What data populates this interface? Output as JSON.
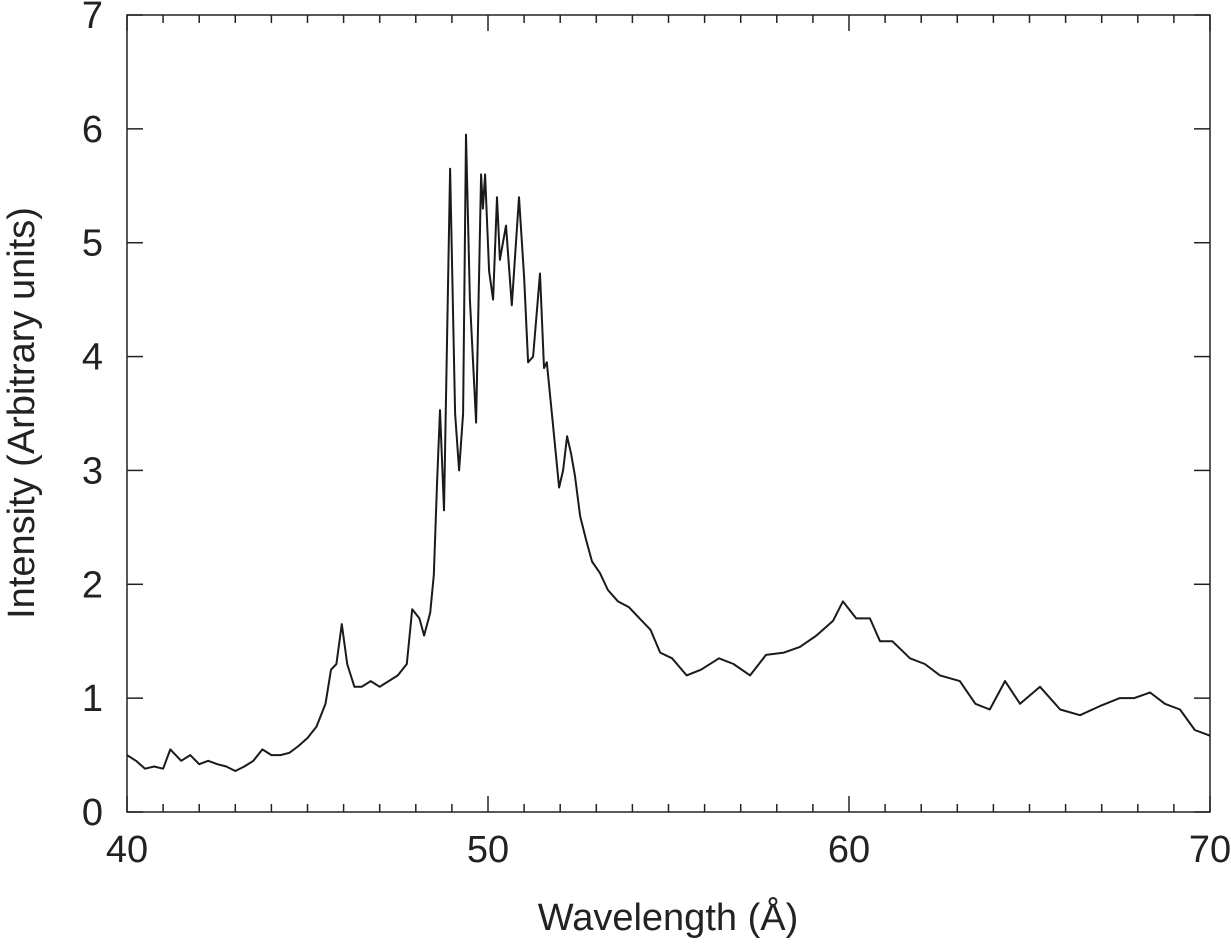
{
  "chart_data": {
    "type": "line",
    "x_label": "Wavelength (Å)",
    "y_label": "Intensity (Arbitrary units)",
    "xlim": [
      40,
      70
    ],
    "ylim": [
      0,
      7
    ],
    "xticks": [
      40,
      50,
      60,
      70
    ],
    "xticks_minor": [
      41,
      42,
      43,
      44,
      45,
      46,
      47,
      48,
      49,
      51,
      52,
      53,
      54,
      55,
      56,
      57,
      58,
      59,
      61,
      62,
      63,
      64,
      65,
      66,
      67,
      68,
      69
    ],
    "yticks": [
      0,
      1,
      2,
      3,
      4,
      5,
      6,
      7
    ],
    "x": [
      40,
      40.25,
      40.5,
      40.75,
      41,
      41.2,
      41.5,
      41.75,
      42,
      42.25,
      42.5,
      42.75,
      43,
      43.25,
      43.5,
      43.75,
      44,
      44.25,
      44.5,
      44.75,
      45,
      45.25,
      45.5,
      45.65,
      45.8,
      45.95,
      46.1,
      46.3,
      46.5,
      46.75,
      47,
      47.25,
      47.5,
      47.75,
      47.9,
      48.1,
      48.23,
      48.4,
      48.5,
      48.59,
      48.67,
      48.78,
      48.95,
      49.09,
      49.2,
      49.31,
      49.39,
      49.5,
      49.67,
      49.81,
      49.86,
      49.92,
      50.03,
      50.14,
      50.25,
      50.33,
      50.5,
      50.66,
      50.86,
      51,
      51.11,
      51.25,
      51.44,
      51.55,
      51.63,
      51.8,
      51.97,
      52.08,
      52.19,
      52.3,
      52.41,
      52.55,
      52.71,
      52.88,
      53.1,
      53.32,
      53.6,
      53.9,
      54.2,
      54.5,
      54.77,
      55.1,
      55.5,
      55.9,
      56.4,
      56.8,
      57.26,
      57.7,
      58.2,
      58.64,
      59.1,
      59.56,
      59.83,
      60.2,
      60.58,
      60.86,
      61.2,
      61.69,
      62.1,
      62.52,
      63.07,
      63.5,
      63.9,
      64.32,
      64.74,
      65.29,
      65.85,
      66.4,
      66.95,
      67.5,
      67.9,
      68.34,
      68.75,
      69.17,
      69.58,
      70
    ],
    "series": [
      {
        "name": "Intensity",
        "color": "#1a1a1a",
        "values": [
          0.5,
          0.45,
          0.38,
          0.4,
          0.38,
          0.55,
          0.45,
          0.5,
          0.42,
          0.45,
          0.42,
          0.4,
          0.36,
          0.4,
          0.45,
          0.55,
          0.5,
          0.5,
          0.52,
          0.58,
          0.65,
          0.75,
          0.95,
          1.25,
          1.3,
          1.65,
          1.3,
          1.1,
          1.1,
          1.15,
          1.1,
          1.15,
          1.2,
          1.3,
          1.78,
          1.7,
          1.55,
          1.75,
          2.08,
          2.9,
          3.53,
          2.65,
          5.65,
          3.5,
          3.0,
          3.5,
          5.95,
          4.5,
          3.42,
          5.6,
          5.3,
          5.6,
          4.75,
          4.5,
          5.4,
          4.85,
          5.15,
          4.45,
          5.4,
          4.7,
          3.95,
          4.0,
          4.73,
          3.9,
          3.95,
          3.4,
          2.85,
          3.0,
          3.3,
          3.15,
          2.95,
          2.6,
          2.4,
          2.2,
          2.1,
          1.95,
          1.85,
          1.8,
          1.7,
          1.6,
          1.4,
          1.35,
          1.2,
          1.25,
          1.35,
          1.3,
          1.2,
          1.38,
          1.4,
          1.45,
          1.55,
          1.68,
          1.85,
          1.7,
          1.7,
          1.5,
          1.5,
          1.35,
          1.3,
          1.2,
          1.15,
          0.95,
          0.9,
          1.15,
          0.95,
          1.1,
          0.9,
          0.85,
          0.93,
          1.0,
          1.0,
          1.05,
          0.95,
          0.9,
          0.72,
          0.67
        ]
      }
    ]
  }
}
